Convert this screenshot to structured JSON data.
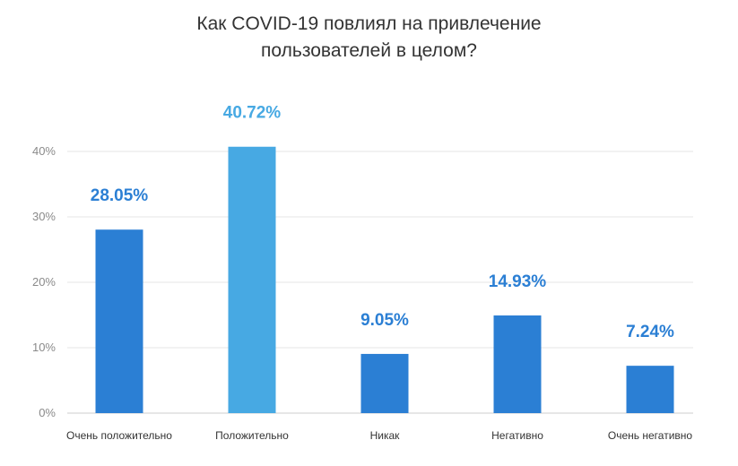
{
  "chart_data": {
    "type": "bar",
    "title": [
      "Как COVID-19 повлиял на привлечение",
      "пользователей в целом?"
    ],
    "categories": [
      "Очень положительно",
      "Положительно",
      "Никак",
      "Негативно",
      "Очень негативно"
    ],
    "values": [
      28.05,
      40.72,
      9.05,
      14.93,
      7.24
    ],
    "data_labels": [
      "28.05%",
      "40.72%",
      "9.05%",
      "14.93%",
      "7.24%"
    ],
    "yticks": [
      0,
      10,
      20,
      30,
      40
    ],
    "ytick_labels": [
      "0%",
      "10%",
      "20%",
      "30%",
      "40%"
    ],
    "ylim": [
      0,
      40
    ],
    "xlabel": "",
    "ylabel": "",
    "grid": true,
    "legend": "none",
    "colors": {
      "bar": "#2b7fd4",
      "bar_highlight": "#47a9e3",
      "label": "#2b7fd4",
      "label_highlight": "#47a9e3",
      "grid": "#e6e6e6",
      "axis": "#cccccc"
    },
    "highlight_index": 1
  }
}
